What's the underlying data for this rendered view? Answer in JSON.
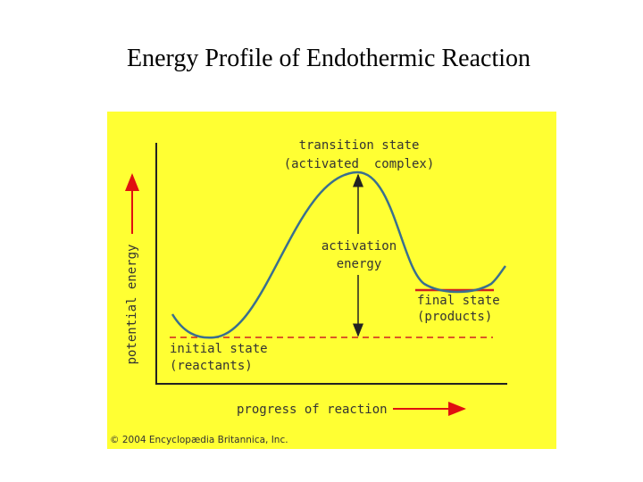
{
  "title": "Energy Profile of Endothermic Reaction",
  "diagram": {
    "y_axis_label": "potential energy",
    "x_axis_label": "progress of reaction",
    "transition_state": [
      "transition state",
      "(activated  complex)"
    ],
    "activation_energy": [
      "activation",
      "energy"
    ],
    "final_state": [
      "final state",
      "(products)"
    ],
    "initial_state": [
      "initial state",
      "(reactants)"
    ],
    "credit": "© 2004 Encyclopædia Britannica, Inc."
  }
}
